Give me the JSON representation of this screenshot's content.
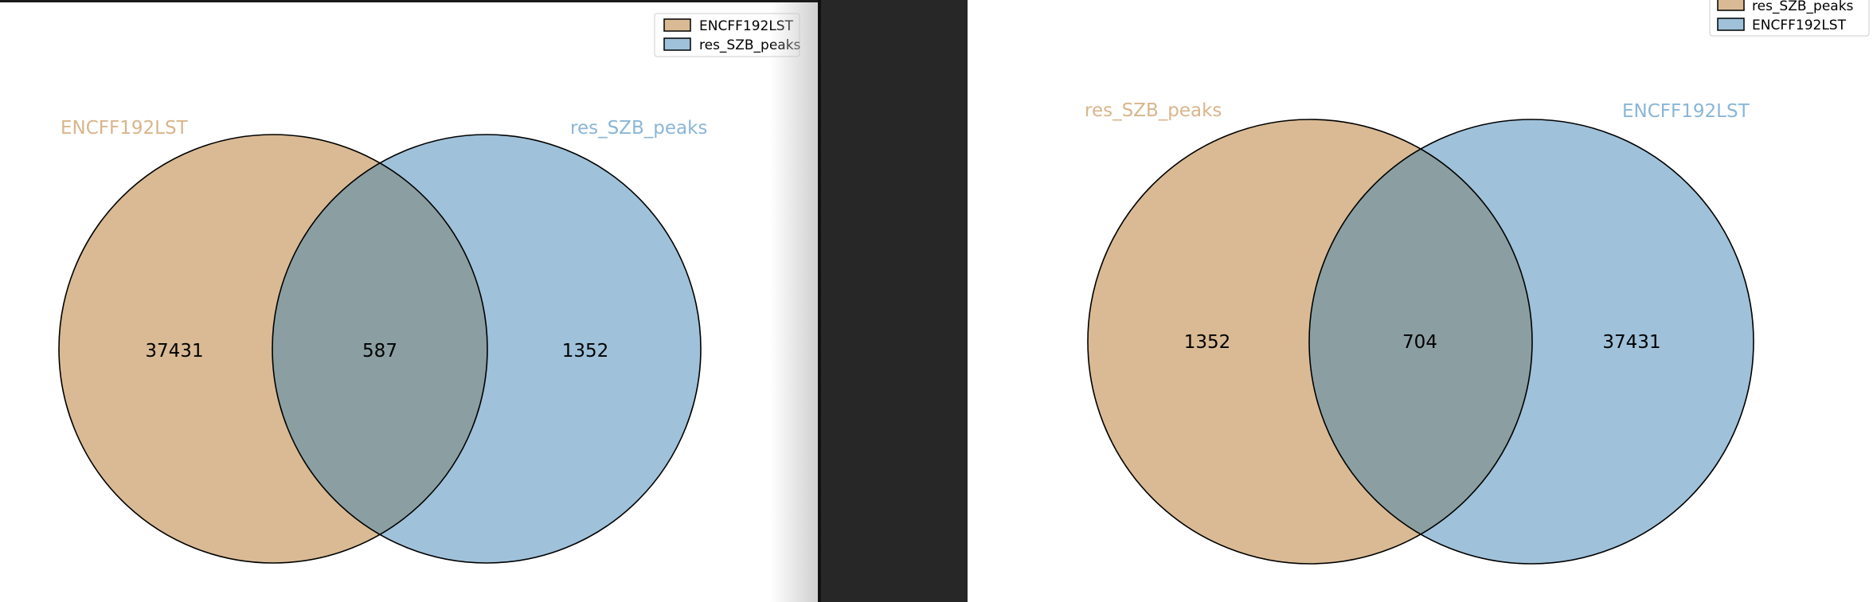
{
  "colors": {
    "set_a": "#d9ba94",
    "set_b": "#9fc1da",
    "overlap": "#8b9fa2",
    "label_a": "#d8b58c",
    "label_b": "#8ab6d6"
  },
  "left_diagram": {
    "legend": [
      "ENCFF192LST",
      "res_SZB_peaks"
    ],
    "labels": {
      "a": "ENCFF192LST",
      "b": "res_SZB_peaks"
    },
    "counts": {
      "a_only": "37431",
      "both": "587",
      "b_only": "1352"
    }
  },
  "right_diagram": {
    "legend": [
      "res_SZB_peaks",
      "ENCFF192LST"
    ],
    "labels": {
      "a": "res_SZB_peaks",
      "b": "ENCFF192LST"
    },
    "counts": {
      "a_only": "1352",
      "both": "704",
      "b_only": "37431"
    }
  }
}
